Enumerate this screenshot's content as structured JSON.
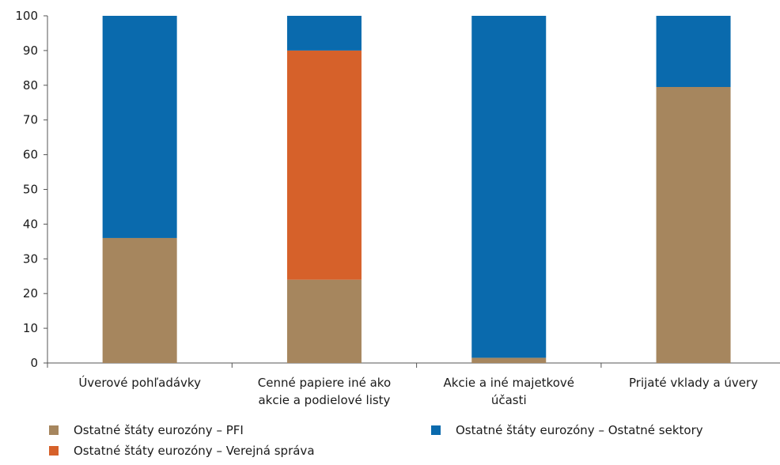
{
  "chart_data": {
    "type": "bar",
    "stacked": true,
    "categories": [
      [
        "Úverové pohľadávky"
      ],
      [
        "Cenné  papiere iné ako",
        "akcie a podielové listy"
      ],
      [
        "Akcie a iné majetkové",
        "účasti"
      ],
      [
        "Prijaté vklady a úvery"
      ]
    ],
    "series": [
      {
        "name": "Ostatné štáty eurozóny – PFI",
        "color": "#a6865e",
        "values": [
          36,
          24,
          1.5,
          79.5
        ]
      },
      {
        "name": "Ostatné štáty eurozóny – Verejná správa",
        "color": "#d6612a",
        "values": [
          0,
          66,
          0,
          0
        ]
      },
      {
        "name": "Ostatné štáty eurozóny – Ostatné sektory",
        "color": "#0a6aad",
        "values": [
          64,
          10,
          98.5,
          20.5
        ]
      }
    ],
    "ylim": [
      0,
      100
    ],
    "yticks": [
      0,
      10,
      20,
      30,
      40,
      50,
      60,
      70,
      80,
      90,
      100
    ],
    "grid": false,
    "legend": "bottom"
  }
}
